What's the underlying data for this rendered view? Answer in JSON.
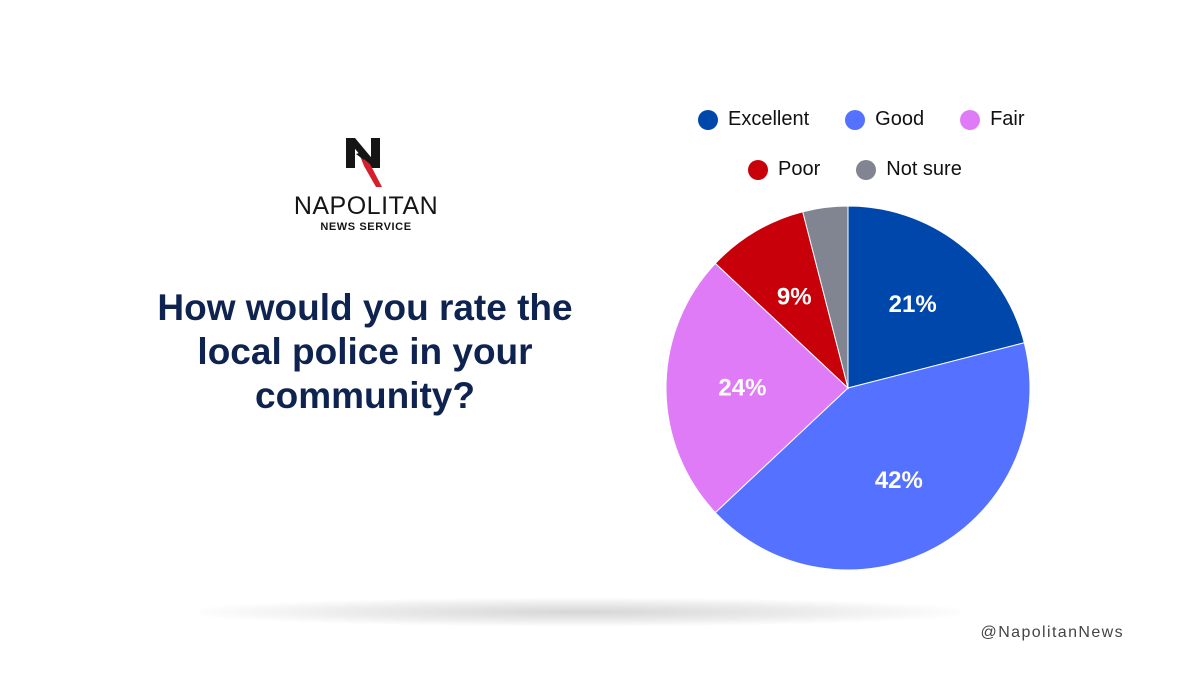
{
  "brand": {
    "name": "NAPOLITAN",
    "subtitle": "NEWS SERVICE",
    "logo_letter": "N",
    "handle": "@NapolitanNews"
  },
  "question": "How would you rate the local police in your community?",
  "chart_data": {
    "type": "pie",
    "title": "How would you rate the local police in your community?",
    "legend_position": "top",
    "categories": [
      "Excellent",
      "Good",
      "Fair",
      "Poor",
      "Not sure"
    ],
    "values": [
      21,
      42,
      24,
      9,
      4
    ],
    "labels": [
      "21%",
      "42%",
      "24%",
      "9%",
      ""
    ],
    "colors": [
      "#0047ab",
      "#5472ff",
      "#e07bf7",
      "#c8000a",
      "#808591"
    ],
    "start_angle": "12 o'clock",
    "direction": "clockwise"
  }
}
